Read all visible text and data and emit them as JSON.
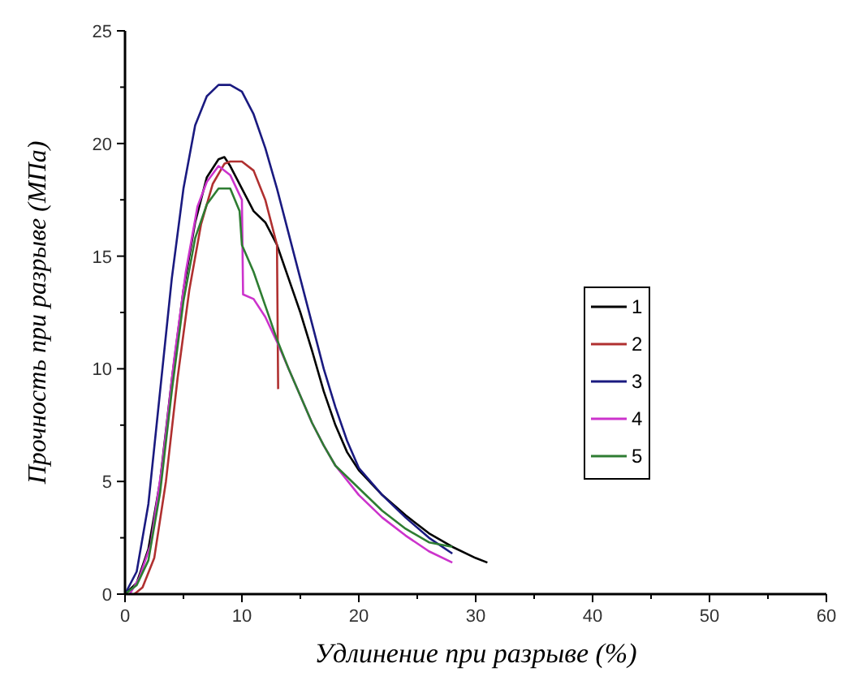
{
  "chart_data": {
    "type": "line",
    "xlabel": "Удлинение при разрыве (%)",
    "ylabel": "Прочность при разрыве (МПа)",
    "xlim": [
      0,
      60
    ],
    "ylim": [
      0,
      25
    ],
    "xticks": [
      0,
      {
        "value": 5,
        "label": null
      },
      10,
      {
        "value": 15,
        "label": null
      },
      20,
      {
        "value": 25,
        "label": null
      },
      30,
      {
        "value": 35,
        "label": null
      },
      40,
      {
        "value": 45,
        "label": null
      },
      50,
      {
        "value": 55,
        "label": null
      },
      60
    ],
    "yticks": [
      0,
      {
        "value": 2.5,
        "label": null
      },
      5,
      {
        "value": 7.5,
        "label": null
      },
      10,
      {
        "value": 12.5,
        "label": null
      },
      15,
      {
        "value": 17.5,
        "label": null
      },
      20,
      {
        "value": 22.5,
        "label": null
      },
      25
    ],
    "legend": "right",
    "grid": false,
    "line_style": "solid",
    "series": [
      {
        "name": "1",
        "color": "#000000",
        "x": [
          0,
          1,
          2,
          3,
          4,
          5,
          6,
          7,
          8,
          8.5,
          9,
          10,
          11,
          12,
          13,
          14,
          15,
          16,
          17,
          18,
          19,
          20,
          22,
          24,
          26,
          28,
          30,
          31
        ],
        "values": [
          0,
          0.5,
          2,
          5,
          9.5,
          13.5,
          16.5,
          18.5,
          19.3,
          19.4,
          19,
          18,
          17,
          16.5,
          15.5,
          14,
          12.5,
          10.8,
          9,
          7.5,
          6.3,
          5.5,
          4.4,
          3.5,
          2.7,
          2.1,
          1.6,
          1.4
        ]
      },
      {
        "name": "2",
        "color": "#b03030",
        "x": [
          0.8,
          1.5,
          2.5,
          3.5,
          4.5,
          5.5,
          6.5,
          7.5,
          8.5,
          9,
          10,
          11,
          12,
          13,
          13.1
        ],
        "values": [
          0,
          0.3,
          1.6,
          5,
          9.6,
          13.5,
          16.4,
          18.2,
          19.1,
          19.2,
          19.2,
          18.8,
          17.5,
          15.5,
          9.1
        ]
      },
      {
        "name": "3",
        "color": "#1a1a80",
        "x": [
          0,
          1,
          2,
          3,
          4,
          5,
          6,
          7,
          8,
          9,
          10,
          11,
          12,
          13,
          14,
          15,
          16,
          17,
          18,
          19,
          20,
          22,
          24,
          26,
          28
        ],
        "values": [
          0,
          1,
          4,
          9,
          14,
          18,
          20.8,
          22.1,
          22.6,
          22.6,
          22.3,
          21.3,
          19.8,
          18,
          16,
          14,
          12,
          10,
          8.3,
          6.8,
          5.6,
          4.4,
          3.4,
          2.5,
          1.8
        ]
      },
      {
        "name": "4",
        "color": "#cc33cc",
        "x": [
          0.4,
          1.2,
          2.2,
          3.2,
          4.2,
          5.2,
          6.2,
          7,
          8,
          9,
          10,
          10.1,
          11,
          12,
          13,
          14,
          15,
          16,
          17,
          18,
          20,
          22,
          24,
          26,
          28
        ],
        "values": [
          0,
          0.7,
          2.2,
          5.8,
          10.4,
          14.3,
          17.2,
          18.3,
          19,
          18.6,
          17.5,
          13.3,
          13.1,
          12.3,
          11.2,
          10,
          8.8,
          7.6,
          6.6,
          5.7,
          4.4,
          3.4,
          2.6,
          1.9,
          1.4
        ]
      },
      {
        "name": "5",
        "color": "#2e7d32",
        "x": [
          0,
          1,
          2,
          3,
          4,
          5,
          6,
          7,
          8,
          9,
          9.8,
          10,
          11,
          12,
          13,
          14,
          15,
          16,
          17,
          18,
          20,
          22,
          24,
          26,
          28
        ],
        "values": [
          0,
          0.4,
          1.5,
          4.5,
          9,
          13,
          15.8,
          17.3,
          18,
          18,
          17,
          15.5,
          14.3,
          12.8,
          11.3,
          10,
          8.8,
          7.6,
          6.6,
          5.7,
          4.7,
          3.7,
          2.9,
          2.3,
          2.1
        ]
      }
    ]
  }
}
